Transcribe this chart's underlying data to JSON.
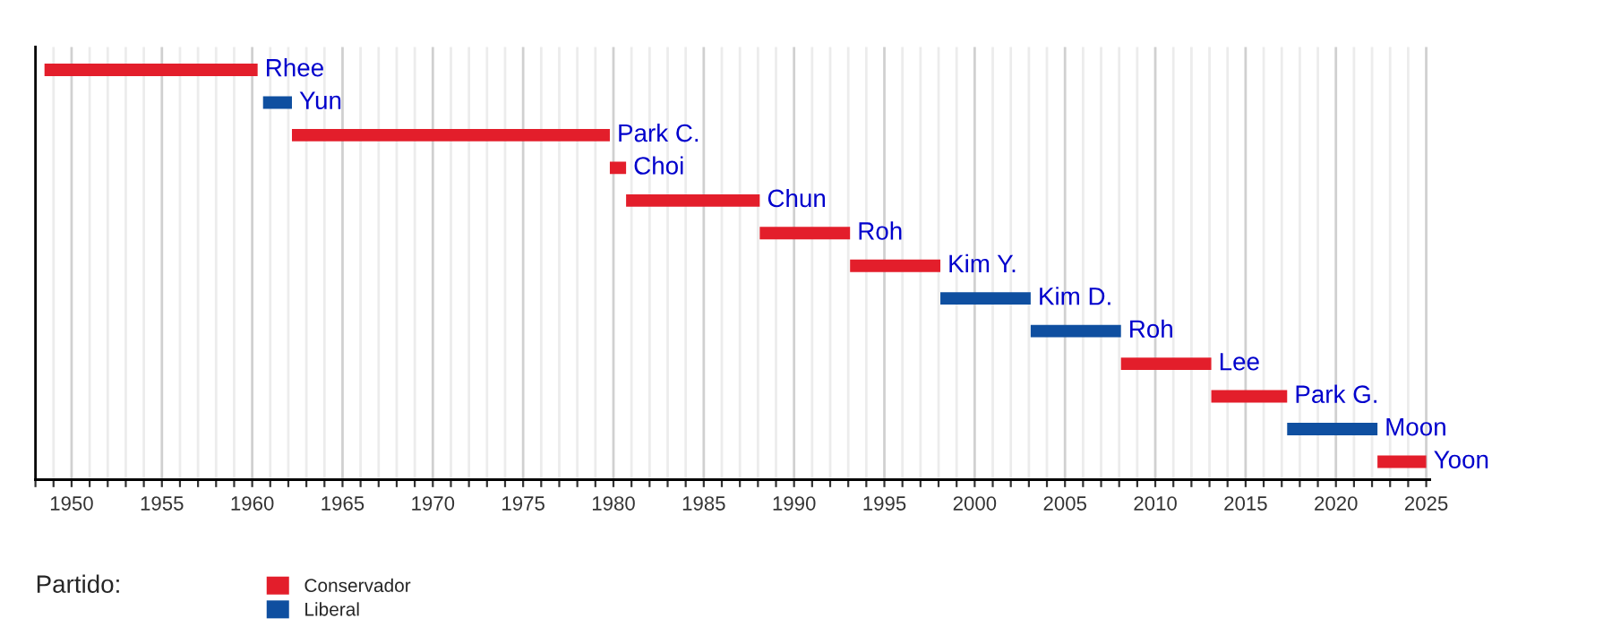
{
  "chart_data": {
    "type": "bar",
    "orientation": "horizontal",
    "categories": [
      "Rhee",
      "Yun",
      "Park C.",
      "Choi",
      "Chun",
      "Roh",
      "Kim Y.",
      "Kim D.",
      "Roh",
      "Lee",
      "Park G.",
      "Moon",
      "Yoon"
    ],
    "series": [
      {
        "name": "Conservador",
        "color": "#e31e2b",
        "base": [
          1948.5,
          null,
          1962.2,
          1979.8,
          1980.7,
          1988.1,
          1993.1,
          null,
          null,
          2008.1,
          2013.1,
          null,
          2022.3
        ],
        "values": [
          11.8,
          null,
          17.6,
          0.9,
          7.4,
          5.0,
          5.0,
          null,
          null,
          5.0,
          4.2,
          null,
          2.7
        ]
      },
      {
        "name": "Liberal",
        "color": "#0f4fa0",
        "base": [
          null,
          1960.6,
          null,
          null,
          null,
          null,
          null,
          1998.1,
          2003.1,
          null,
          null,
          2017.3,
          null
        ],
        "values": [
          null,
          1.6,
          null,
          null,
          null,
          null,
          null,
          5.0,
          5.0,
          null,
          null,
          5.0,
          null
        ]
      }
    ],
    "xlim": [
      1948,
      2025.2
    ],
    "xticks": [
      {
        "value": 1948,
        "label": null
      },
      {
        "value": 1949,
        "label": null
      },
      1950,
      {
        "value": 1951,
        "label": null
      },
      {
        "value": 1952,
        "label": null
      },
      {
        "value": 1953,
        "label": null
      },
      {
        "value": 1954,
        "label": null
      },
      1955,
      {
        "value": 1956,
        "label": null
      },
      {
        "value": 1957,
        "label": null
      },
      {
        "value": 1958,
        "label": null
      },
      {
        "value": 1959,
        "label": null
      },
      1960,
      {
        "value": 1961,
        "label": null
      },
      {
        "value": 1962,
        "label": null
      },
      {
        "value": 1963,
        "label": null
      },
      {
        "value": 1964,
        "label": null
      },
      1965,
      {
        "value": 1966,
        "label": null
      },
      {
        "value": 1967,
        "label": null
      },
      {
        "value": 1968,
        "label": null
      },
      {
        "value": 1969,
        "label": null
      },
      1970,
      {
        "value": 1971,
        "label": null
      },
      {
        "value": 1972,
        "label": null
      },
      {
        "value": 1973,
        "label": null
      },
      {
        "value": 1974,
        "label": null
      },
      1975,
      {
        "value": 1976,
        "label": null
      },
      {
        "value": 1977,
        "label": null
      },
      {
        "value": 1978,
        "label": null
      },
      {
        "value": 1979,
        "label": null
      },
      1980,
      {
        "value": 1981,
        "label": null
      },
      {
        "value": 1982,
        "label": null
      },
      {
        "value": 1983,
        "label": null
      },
      {
        "value": 1984,
        "label": null
      },
      1985,
      {
        "value": 1986,
        "label": null
      },
      {
        "value": 1987,
        "label": null
      },
      {
        "value": 1988,
        "label": null
      },
      {
        "value": 1989,
        "label": null
      },
      1990,
      {
        "value": 1991,
        "label": null
      },
      {
        "value": 1992,
        "label": null
      },
      {
        "value": 1993,
        "label": null
      },
      {
        "value": 1994,
        "label": null
      },
      1995,
      {
        "value": 1996,
        "label": null
      },
      {
        "value": 1997,
        "label": null
      },
      {
        "value": 1998,
        "label": null
      },
      {
        "value": 1999,
        "label": null
      },
      2000,
      {
        "value": 2001,
        "label": null
      },
      {
        "value": 2002,
        "label": null
      },
      {
        "value": 2003,
        "label": null
      },
      {
        "value": 2004,
        "label": null
      },
      2005,
      {
        "value": 2006,
        "label": null
      },
      {
        "value": 2007,
        "label": null
      },
      {
        "value": 2008,
        "label": null
      },
      {
        "value": 2009,
        "label": null
      },
      2010,
      {
        "value": 2011,
        "label": null
      },
      {
        "value": 2012,
        "label": null
      },
      {
        "value": 2013,
        "label": null
      },
      {
        "value": 2014,
        "label": null
      },
      2015,
      {
        "value": 2016,
        "label": null
      },
      {
        "value": 2017,
        "label": null
      },
      {
        "value": 2018,
        "label": null
      },
      {
        "value": 2019,
        "label": null
      },
      2020,
      {
        "value": 2021,
        "label": null
      },
      {
        "value": 2022,
        "label": null
      },
      {
        "value": 2023,
        "label": null
      },
      {
        "value": 2024,
        "label": null
      },
      2025
    ],
    "grid": "x",
    "tick_labels": "x",
    "legend": "bottom left",
    "legend_title": "Partido:"
  }
}
